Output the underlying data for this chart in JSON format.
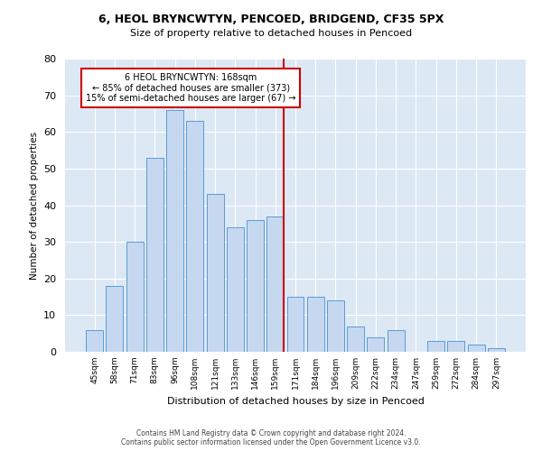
{
  "title_line1": "6, HEOL BRYNCWTYN, PENCOED, BRIDGEND, CF35 5PX",
  "title_line2": "Size of property relative to detached houses in Pencoed",
  "xlabel": "Distribution of detached houses by size in Pencoed",
  "ylabel": "Number of detached properties",
  "bin_labels": [
    "45sqm",
    "58sqm",
    "71sqm",
    "83sqm",
    "96sqm",
    "108sqm",
    "121sqm",
    "133sqm",
    "146sqm",
    "159sqm",
    "171sqm",
    "184sqm",
    "196sqm",
    "209sqm",
    "222sqm",
    "234sqm",
    "247sqm",
    "259sqm",
    "272sqm",
    "284sqm",
    "297sqm"
  ],
  "bar_values": [
    6,
    18,
    30,
    53,
    66,
    63,
    43,
    34,
    36,
    37,
    15,
    15,
    14,
    7,
    4,
    6,
    0,
    3,
    3,
    2,
    1
  ],
  "bar_color": "#c5d8f0",
  "bar_edge_color": "#5b9bd5",
  "property_bin_index": 9,
  "annotation_title": "6 HEOL BRYNCWTYN: 168sqm",
  "annotation_line1": "← 85% of detached houses are smaller (373)",
  "annotation_line2": "15% of semi-detached houses are larger (67) →",
  "vline_color": "#cc0000",
  "annotation_box_color": "#ffffff",
  "annotation_box_edge": "#cc0000",
  "ylim": [
    0,
    80
  ],
  "yticks": [
    0,
    10,
    20,
    30,
    40,
    50,
    60,
    70,
    80
  ],
  "background_color": "#dde8f5",
  "footer_line1": "Contains HM Land Registry data © Crown copyright and database right 2024.",
  "footer_line2": "Contains public sector information licensed under the Open Government Licence v3.0."
}
